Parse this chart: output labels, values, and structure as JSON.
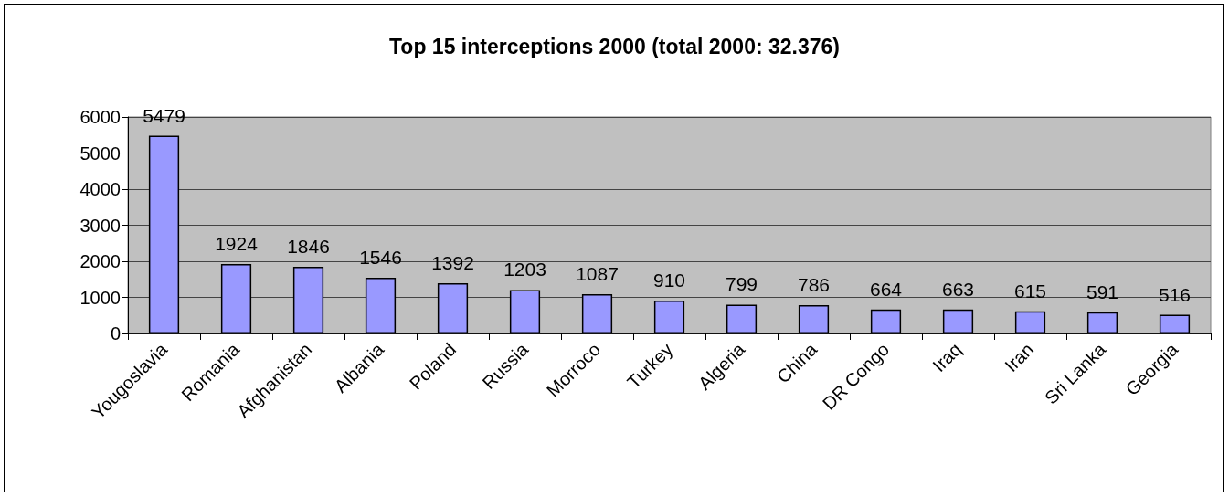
{
  "chart_data": {
    "type": "bar",
    "title": "Top 15 interceptions 2000 (total 2000: 32.376)",
    "categories": [
      "Yougoslavia",
      "Romania",
      "Afghanistan",
      "Albania",
      "Poland",
      "Russia",
      "Morroco",
      "Turkey",
      "Algeria",
      "China",
      "DR Congo",
      "Iraq",
      "Iran",
      "Sri Lanka",
      "Georgia"
    ],
    "values": [
      5479,
      1924,
      1846,
      1546,
      1392,
      1203,
      1087,
      910,
      799,
      786,
      664,
      663,
      615,
      591,
      516
    ],
    "color": "#9999ff",
    "ylim": [
      0,
      6000
    ],
    "yticks": [
      0,
      1000,
      2000,
      3000,
      4000,
      5000,
      6000
    ],
    "grid": "y",
    "data_labels": true
  }
}
